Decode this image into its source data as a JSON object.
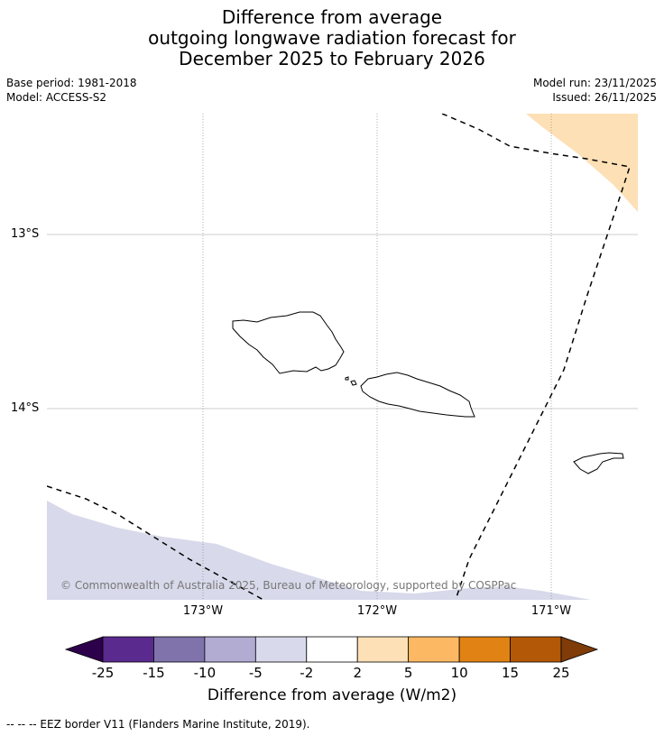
{
  "title": {
    "line1": "Difference from average",
    "line2": "outgoing longwave radiation forecast for",
    "line3": "December 2025 to February 2026"
  },
  "meta": {
    "base_period": "Base period: 1981-2018",
    "model": "Model: ACCESS-S2",
    "model_run": "Model run: 23/11/2025",
    "issued": "Issued: 26/11/2025"
  },
  "map": {
    "lat_labels": [
      "13°S",
      "14°S"
    ],
    "lon_labels": [
      "173°W",
      "172°W",
      "171°W"
    ],
    "copyright": "© Commonwealth of Australia 2025, Bureau of Meteorology, supported by COSPPac",
    "colors": {
      "negative_light": "#d8d9ea",
      "positive_light": "#fde0b6"
    }
  },
  "colorbar": {
    "ticks": [
      "-25",
      "-15",
      "-10",
      "-5",
      "-2",
      "2",
      "5",
      "10",
      "15",
      "25"
    ],
    "colors": [
      "#2d004b",
      "#5a2a8f",
      "#8073ac",
      "#b2abd2",
      "#d8daeb",
      "#ffffff",
      "#fee0b6",
      "#fdb863",
      "#e08214",
      "#b35806",
      "#7f3b08"
    ],
    "label": "Difference from average (W/m2)"
  },
  "footnote": "--  --  -- EEZ border V11 (Flanders Marine Institute, 2019)."
}
